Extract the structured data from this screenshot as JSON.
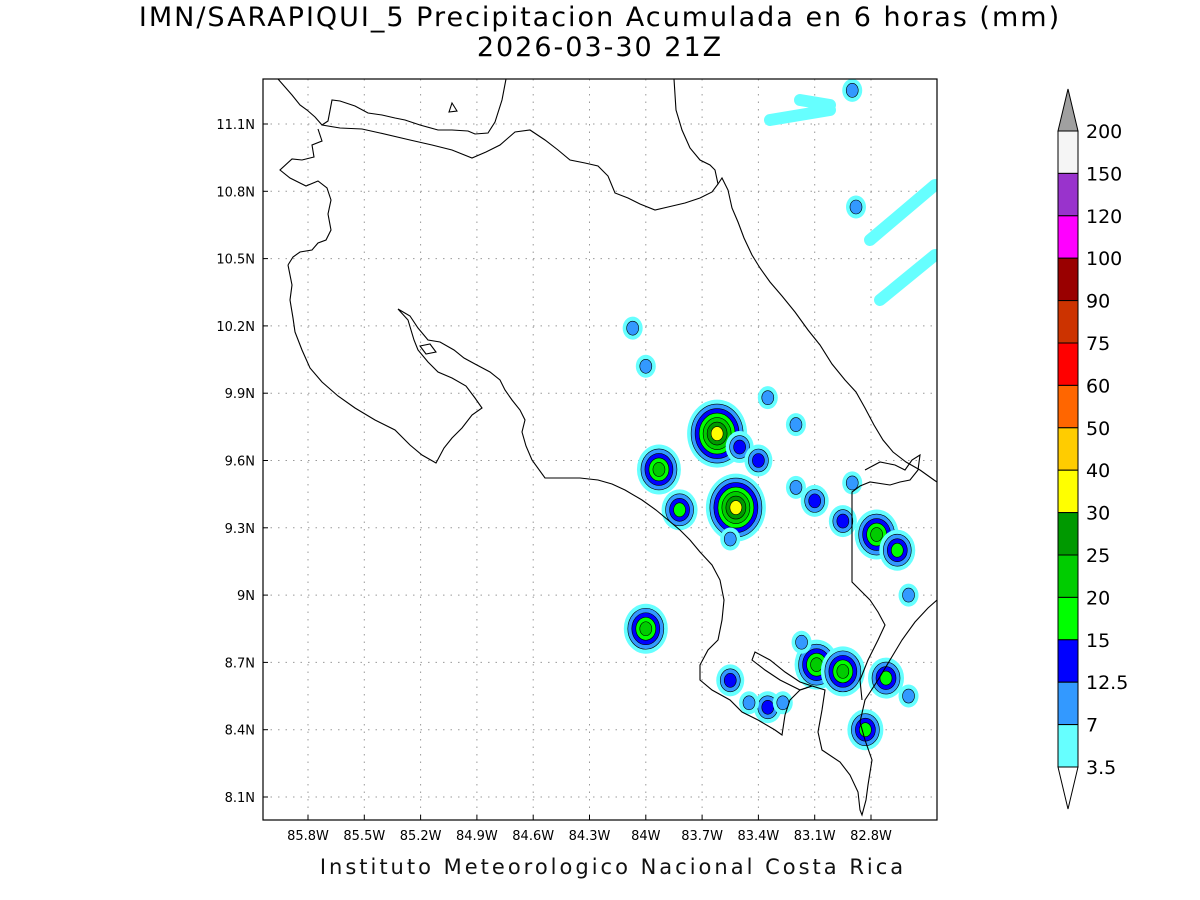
{
  "title": "IMN/SARAPIQUI_5 Precipitacion Acumulada en 6 horas (mm)",
  "subtitle": "2026-03-30 21Z",
  "credit": "Instituto Meteorologico Nacional Costa Rica",
  "map": {
    "lon_range": [
      -86.0,
      -82.6
    ],
    "lat_range": [
      8.0,
      11.3
    ],
    "lon_ticks": [
      {
        "value": -85.8,
        "label": "85.8W"
      },
      {
        "value": -85.5,
        "label": "85.5W"
      },
      {
        "value": -85.2,
        "label": "85.2W"
      },
      {
        "value": -84.9,
        "label": "84.9W"
      },
      {
        "value": -84.6,
        "label": "84.6W"
      },
      {
        "value": -84.3,
        "label": "84.3W"
      },
      {
        "value": -84.0,
        "label": "84W"
      },
      {
        "value": -83.7,
        "label": "83.7W"
      },
      {
        "value": -83.4,
        "label": "83.4W"
      },
      {
        "value": -83.1,
        "label": "83.1W"
      },
      {
        "value": -82.8,
        "label": "82.8W"
      }
    ],
    "lat_ticks": [
      {
        "value": 11.1,
        "label": "11.1N"
      },
      {
        "value": 10.8,
        "label": "10.8N"
      },
      {
        "value": 10.5,
        "label": "10.5N"
      },
      {
        "value": 10.2,
        "label": "10.2N"
      },
      {
        "value": 9.9,
        "label": "9.9N"
      },
      {
        "value": 9.6,
        "label": "9.6N"
      },
      {
        "value": 9.3,
        "label": "9.3N"
      },
      {
        "value": 9.0,
        "label": "9N"
      },
      {
        "value": 8.7,
        "label": "8.7N"
      },
      {
        "value": 8.4,
        "label": "8.4N"
      },
      {
        "value": 8.1,
        "label": "8.1N"
      }
    ],
    "grid": true,
    "grid_style": "dotted"
  },
  "colorbar": {
    "orientation": "vertical",
    "labels": [
      "3.5",
      "7",
      "12.5",
      "15",
      "20",
      "25",
      "30",
      "40",
      "50",
      "60",
      "75",
      "90",
      "100",
      "120",
      "150",
      "200"
    ],
    "colors": [
      "#66ffff",
      "#3399ff",
      "#0000ff",
      "#00ff00",
      "#00cc00",
      "#009900",
      "#ffff00",
      "#ffcc00",
      "#ff6600",
      "#ff0000",
      "#cc3300",
      "#990000",
      "#ff00ff",
      "#9933cc",
      "#f5f5f5"
    ],
    "top_arrow_color": "#a0a0a0",
    "bottom_arrow_color": "#ffffff"
  },
  "precip_cells": [
    {
      "lon": -83.62,
      "lat": 9.72,
      "level": 6
    },
    {
      "lon": -83.52,
      "lat": 9.39,
      "level": 6
    },
    {
      "lon": -84.0,
      "lat": 8.85,
      "level": 4
    },
    {
      "lon": -83.09,
      "lat": 8.69,
      "level": 4
    },
    {
      "lon": -82.95,
      "lat": 8.66,
      "level": 4
    },
    {
      "lon": -83.93,
      "lat": 9.56,
      "level": 4
    },
    {
      "lon": -83.82,
      "lat": 9.38,
      "level": 3
    },
    {
      "lon": -82.77,
      "lat": 9.27,
      "level": 4
    },
    {
      "lon": -82.66,
      "lat": 9.2,
      "level": 3
    },
    {
      "lon": -82.83,
      "lat": 8.4,
      "level": 3
    },
    {
      "lon": -83.5,
      "lat": 9.66,
      "level": 2
    },
    {
      "lon": -83.1,
      "lat": 9.42,
      "level": 2
    },
    {
      "lon": -82.95,
      "lat": 9.33,
      "level": 2
    },
    {
      "lon": -82.72,
      "lat": 8.63,
      "level": 3
    },
    {
      "lon": -83.35,
      "lat": 8.5,
      "level": 2
    },
    {
      "lon": -83.4,
      "lat": 9.6,
      "level": 2
    },
    {
      "lon": -83.55,
      "lat": 8.62,
      "level": 2
    },
    {
      "lon": -83.45,
      "lat": 8.52,
      "level": 1
    },
    {
      "lon": -83.27,
      "lat": 8.52,
      "level": 1
    },
    {
      "lon": -82.88,
      "lat": 10.73,
      "level": 1
    },
    {
      "lon": -82.6,
      "lat": 8.55,
      "level": 1
    },
    {
      "lon": -84.07,
      "lat": 10.19,
      "level": 1
    },
    {
      "lon": -84.0,
      "lat": 10.02,
      "level": 1
    },
    {
      "lon": -83.2,
      "lat": 9.76,
      "level": 1
    },
    {
      "lon": -83.55,
      "lat": 9.25,
      "level": 1
    },
    {
      "lon": -83.2,
      "lat": 9.48,
      "level": 1
    },
    {
      "lon": -83.35,
      "lat": 9.88,
      "level": 1
    },
    {
      "lon": -82.9,
      "lat": 11.25,
      "level": 1
    },
    {
      "lon": -83.17,
      "lat": 8.79,
      "level": 1
    },
    {
      "lon": -82.9,
      "lat": 9.5,
      "level": 1
    },
    {
      "lon": -82.6,
      "lat": 9.0,
      "level": 1
    }
  ]
}
